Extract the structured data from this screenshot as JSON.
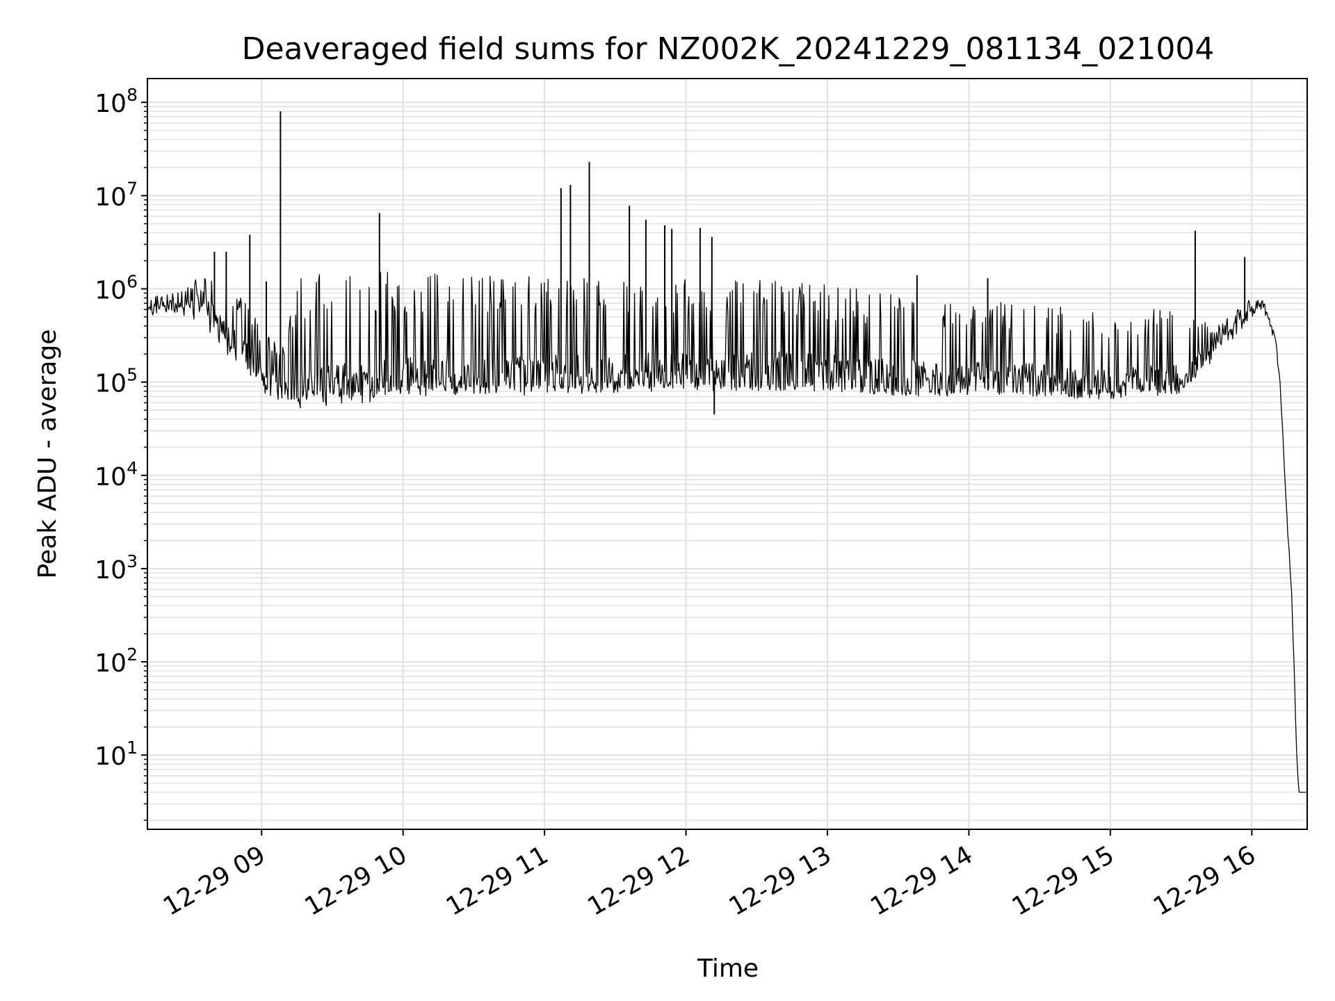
{
  "chart_data": {
    "type": "line",
    "title": "Deaveraged field sums for NZ002K_20241229_081134_021004",
    "xlabel": "Time",
    "ylabel": "Peak ADU - average",
    "yscale": "log",
    "ylim": [
      1.6,
      180000000
    ],
    "xlim": [
      "2024-12-29T08:11:34",
      "2024-12-29T16:23:30"
    ],
    "grid": true,
    "line_color": "#000000",
    "grid_color": "#e0e0e0",
    "x_ticks": [
      {
        "value": "2024-12-29T09:00:00",
        "label": "12-29 09"
      },
      {
        "value": "2024-12-29T10:00:00",
        "label": "12-29 10"
      },
      {
        "value": "2024-12-29T11:00:00",
        "label": "12-29 11"
      },
      {
        "value": "2024-12-29T12:00:00",
        "label": "12-29 12"
      },
      {
        "value": "2024-12-29T13:00:00",
        "label": "12-29 13"
      },
      {
        "value": "2024-12-29T14:00:00",
        "label": "12-29 14"
      },
      {
        "value": "2024-12-29T15:00:00",
        "label": "12-29 15"
      },
      {
        "value": "2024-12-29T16:00:00",
        "label": "12-29 16"
      }
    ],
    "y_ticks": [
      {
        "value": 10,
        "base": "10",
        "exp": "1"
      },
      {
        "value": 100,
        "base": "10",
        "exp": "2"
      },
      {
        "value": 1000,
        "base": "10",
        "exp": "3"
      },
      {
        "value": 10000,
        "base": "10",
        "exp": "4"
      },
      {
        "value": 100000,
        "base": "10",
        "exp": "5"
      },
      {
        "value": 1000000,
        "base": "10",
        "exp": "6"
      },
      {
        "value": 10000000,
        "base": "10",
        "exp": "7"
      },
      {
        "value": 100000000,
        "base": "10",
        "exp": "8"
      }
    ],
    "series": [
      {
        "x": [
          "2024-12-29T08:11:34",
          "2024-12-29T08:20:00",
          "2024-12-29T08:30:00",
          "2024-12-29T08:35:00",
          "2024-12-29T08:40:00",
          "2024-12-29T08:45:00",
          "2024-12-29T08:50:00",
          "2024-12-29T08:55:00",
          "2024-12-29T09:00:00",
          "2024-12-29T09:05:00",
          "2024-12-29T09:10:00",
          "2024-12-29T09:15:00",
          "2024-12-29T09:20:00",
          "2024-12-29T09:30:00",
          "2024-12-29T09:45:00",
          "2024-12-29T10:00:00",
          "2024-12-29T10:30:00",
          "2024-12-29T11:00:00",
          "2024-12-29T11:30:00",
          "2024-12-29T12:00:00",
          "2024-12-29T12:30:00",
          "2024-12-29T13:00:00",
          "2024-12-29T13:30:00",
          "2024-12-29T14:00:00",
          "2024-12-29T14:30:00",
          "2024-12-29T15:00:00",
          "2024-12-29T15:30:00",
          "2024-12-29T15:45:00",
          "2024-12-29T16:00:00",
          "2024-12-29T16:05:00",
          "2024-12-29T16:10:00",
          "2024-12-29T16:12:00",
          "2024-12-29T16:14:00",
          "2024-12-29T16:15:00",
          "2024-12-29T16:17:00",
          "2024-12-29T16:18:00",
          "2024-12-29T16:19:00",
          "2024-12-29T16:20:00",
          "2024-12-29T16:23:30"
        ],
        "y": [
          600000,
          700000,
          700000,
          800000,
          500000,
          350000,
          250000,
          180000,
          120000,
          100000,
          90000,
          85000,
          90000,
          95000,
          100000,
          110000,
          115000,
          120000,
          125000,
          130000,
          135000,
          125000,
          110000,
          110000,
          105000,
          95000,
          110000,
          250000,
          600000,
          700000,
          300000,
          100000,
          10000,
          3000,
          500,
          100,
          10,
          4,
          4
        ],
        "band_low": [
          500000,
          550000,
          500000,
          400000,
          300000,
          200000,
          150000,
          100000,
          80000,
          60000,
          65000,
          60000,
          70000,
          70000,
          75000,
          80000,
          85000,
          85000,
          85000,
          85000,
          80000,
          80000,
          70000,
          70000,
          70000,
          65000,
          75000,
          180000,
          500000,
          600000,
          250000,
          90000,
          9000,
          2500,
          400,
          80,
          8,
          4,
          4
        ],
        "band_high": [
          800000,
          900000,
          1200000,
          1500000,
          1400000,
          1200000,
          900000,
          600000,
          400000,
          300000,
          250000,
          1400000,
          1500000,
          1600000,
          1600000,
          1500000,
          1500000,
          1500000,
          1400000,
          1400000,
          1300000,
          1100000,
          900000,
          800000,
          700000,
          600000,
          600000,
          400000,
          800000,
          750000,
          350000,
          110000,
          11000,
          3500,
          600,
          120,
          12,
          4,
          4
        ],
        "spikes": [
          {
            "x": "2024-12-29T08:40:00",
            "y": 2500000
          },
          {
            "x": "2024-12-29T08:45:00",
            "y": 2500000
          },
          {
            "x": "2024-12-29T08:55:00",
            "y": 3800000
          },
          {
            "x": "2024-12-29T09:02:00",
            "y": 1200000
          },
          {
            "x": "2024-12-29T09:08:00",
            "y": 80000000
          },
          {
            "x": "2024-12-29T09:50:00",
            "y": 6500000
          },
          {
            "x": "2024-12-29T11:07:00",
            "y": 12000000
          },
          {
            "x": "2024-12-29T11:11:00",
            "y": 13000000
          },
          {
            "x": "2024-12-29T11:19:00",
            "y": 23000000
          },
          {
            "x": "2024-12-29T11:36:00",
            "y": 7800000
          },
          {
            "x": "2024-12-29T11:43:00",
            "y": 5500000
          },
          {
            "x": "2024-12-29T11:51:00",
            "y": 4800000
          },
          {
            "x": "2024-12-29T11:54:00",
            "y": 4400000
          },
          {
            "x": "2024-12-29T12:06:00",
            "y": 4500000
          },
          {
            "x": "2024-12-29T12:11:00",
            "y": 3600000
          },
          {
            "x": "2024-12-29T12:12:00",
            "y": 45000
          },
          {
            "x": "2024-12-29T13:38:00",
            "y": 1400000
          },
          {
            "x": "2024-12-29T14:08:00",
            "y": 1300000
          },
          {
            "x": "2024-12-29T15:36:00",
            "y": 4200000
          },
          {
            "x": "2024-12-29T15:57:00",
            "y": 2200000
          }
        ]
      }
    ]
  }
}
